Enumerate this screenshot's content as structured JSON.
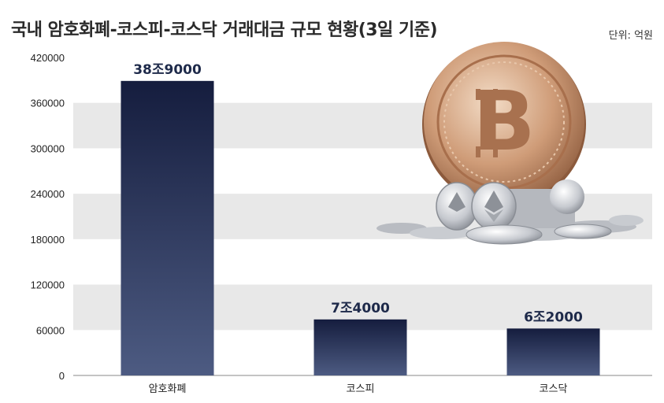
{
  "title": "국내 암호화폐-코스피-코스닥 거래대금 규모 현황(3일 기준)",
  "unit": "단위: 억원",
  "colors": {
    "bar_top": "#151d3e",
    "bar_bottom": "#4d5b82",
    "band": "#e8e8e8",
    "label": "#1e2a4a"
  },
  "chart_data": {
    "type": "bar",
    "categories": [
      "암호화폐",
      "코스피",
      "코스닥"
    ],
    "values": [
      389000,
      74000,
      62000
    ],
    "data_labels": [
      "38조9000",
      "7조4000",
      "6조2000"
    ],
    "yticks": [
      "0",
      "60000",
      "120000",
      "180000",
      "240000",
      "300000",
      "360000",
      "420000"
    ],
    "ylim": [
      0,
      420000
    ],
    "grid": "alternating bands",
    "legend": "none"
  },
  "illustration": {
    "icon": "bitcoin-coin-pile-icon",
    "symbol": "B"
  }
}
